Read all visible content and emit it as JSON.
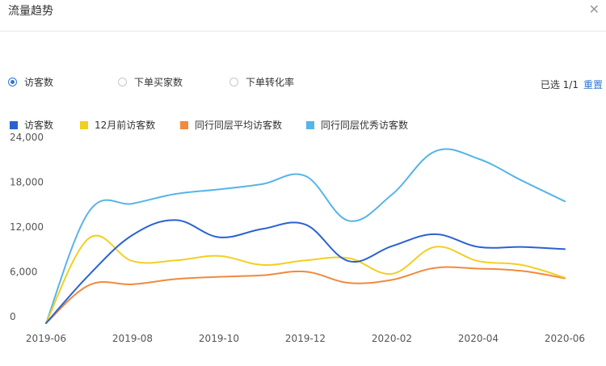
{
  "header": {
    "title": "流量趋势",
    "close_icon": "close-icon"
  },
  "metrics": {
    "options": [
      {
        "label": "访客数",
        "checked": true
      },
      {
        "label": "下单买家数",
        "checked": false
      },
      {
        "label": "下单转化率",
        "checked": false
      }
    ],
    "selected_count": "已选 1/1",
    "reset_label": "重置"
  },
  "chart_data": {
    "type": "line",
    "x": [
      "2019-06",
      "2019-07",
      "2019-08",
      "2019-09",
      "2019-10",
      "2019-11",
      "2019-12",
      "2020-01",
      "2020-02",
      "2020-03",
      "2020-04",
      "2020-05",
      "2020-06"
    ],
    "x_tick_labels": [
      "2019-06",
      "2019-08",
      "2019-10",
      "2019-12",
      "2020-02",
      "2020-04",
      "2020-06"
    ],
    "y_tick_labels": [
      "24,000",
      "18,000",
      "12,000",
      "6,000",
      "0"
    ],
    "ylim": [
      0,
      24000
    ],
    "grid": false,
    "legend_position": "top-left",
    "series": [
      {
        "name": "访客数",
        "color": "#2a62cf",
        "values": [
          0,
          6500,
          11800,
          13800,
          11500,
          12600,
          13200,
          8300,
          10300,
          11900,
          10200,
          10200,
          9900
        ]
      },
      {
        "name": "12月前访客数",
        "color": "#f2cf22",
        "values": [
          0,
          11400,
          8300,
          8400,
          9000,
          7800,
          8400,
          8700,
          6600,
          10200,
          8300,
          7800,
          6100
        ]
      },
      {
        "name": "同行同层平均访客数",
        "color": "#f08a3e",
        "values": [
          0,
          5100,
          5200,
          5900,
          6200,
          6400,
          6900,
          5400,
          5800,
          7400,
          7300,
          7000,
          6000
        ]
      },
      {
        "name": "同行同层优秀访客数",
        "color": "#56b4e9",
        "values": [
          0,
          15000,
          16000,
          17300,
          17900,
          18600,
          19700,
          13700,
          17200,
          23000,
          22000,
          19100,
          16300
        ]
      }
    ]
  }
}
